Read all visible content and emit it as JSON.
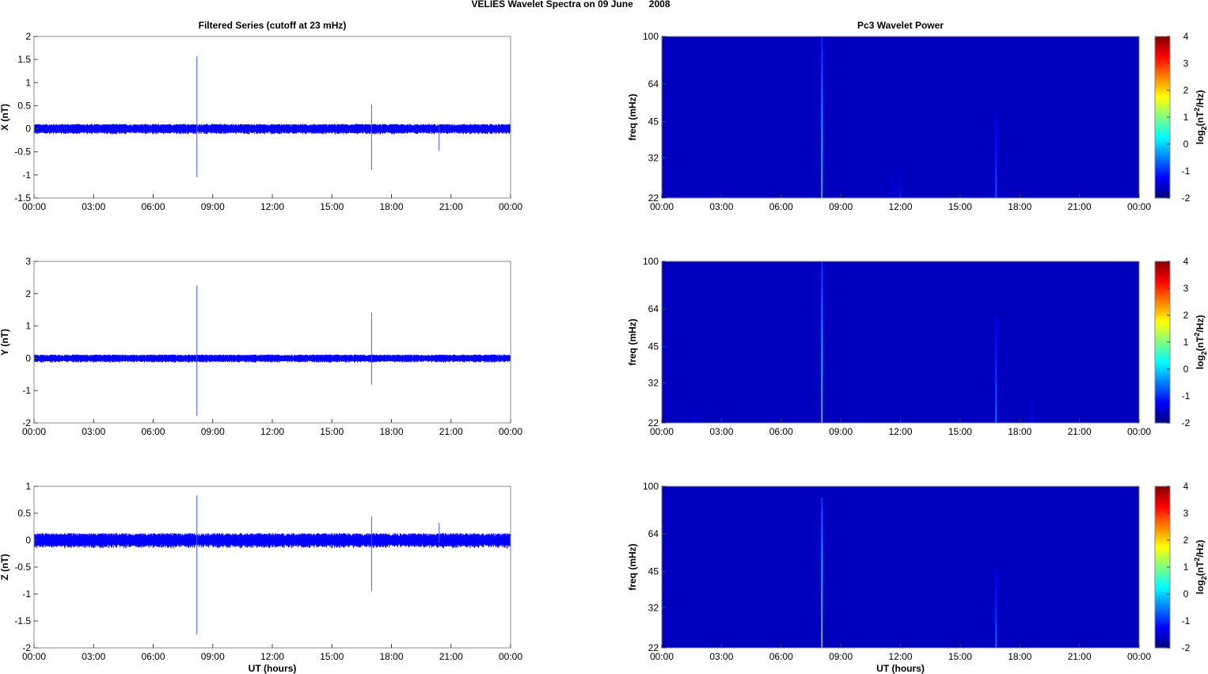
{
  "figure": {
    "suptitle": "VELIES Wavelet Spectra on 09 June      2008"
  },
  "chart_data": [
    {
      "type": "line",
      "panel": "X",
      "title": "Filtered Series (cutoff at 23 mHz)",
      "xlabel": "",
      "ylabel": "X (nT)",
      "xlim": [
        0,
        24
      ],
      "ylim": [
        -1.5,
        2
      ],
      "xticks": [
        "00:00",
        "03:00",
        "06:00",
        "09:00",
        "12:00",
        "15:00",
        "18:00",
        "21:00",
        "00:00"
      ],
      "yticks": [
        -1.5,
        -1,
        -0.5,
        0,
        0.5,
        1,
        1.5,
        2
      ],
      "ytick_labels": [
        "-1.5",
        "-1",
        "-0.5",
        "0",
        "0.5",
        "1",
        "1.5",
        "2"
      ],
      "series": [
        {
          "color": "#0000ff",
          "noise_amplitude": 0.08,
          "spikes": [
            {
              "t": 8.2,
              "ymin": -1.05,
              "ymax": 1.57
            },
            {
              "t": 17.0,
              "ymin": -0.9,
              "ymax": 0.53
            },
            {
              "t": 20.4,
              "ymin": -0.48,
              "ymax": 0.05
            }
          ]
        }
      ],
      "grid": false
    },
    {
      "type": "heatmap",
      "panel": "X",
      "title": "Pc3 Wavelet Power",
      "xlabel": "",
      "ylabel": "freq (mHz)",
      "xlim": [
        0,
        24
      ],
      "ylim": [
        22,
        100
      ],
      "yscale": "log",
      "xticks": [
        "00:00",
        "03:00",
        "06:00",
        "09:00",
        "12:00",
        "15:00",
        "18:00",
        "21:00",
        "00:00"
      ],
      "yticks": [
        100,
        64,
        45,
        32,
        22
      ],
      "background_value": -2,
      "events": [
        {
          "t": 8.05,
          "fmax": 100,
          "peak": 1.0
        },
        {
          "t": 11.6,
          "fmax": 28,
          "peak": -1.3
        },
        {
          "t": 11.95,
          "fmax": 28,
          "peak": -1.4
        },
        {
          "t": 16.8,
          "fmax": 48,
          "peak": -0.5
        }
      ],
      "colorbar": {
        "label": "log2(nT2/Hz)",
        "label_base": "log",
        "label_sub": "2",
        "label_paren_open": "(nT",
        "label_sup": "2",
        "label_tail": "/Hz)",
        "ticks": [
          4,
          3,
          2,
          1,
          0,
          -1,
          -2
        ],
        "range": [
          -2,
          4
        ],
        "colormap": "jet"
      }
    },
    {
      "type": "line",
      "panel": "Y",
      "title": "",
      "xlabel": "",
      "ylabel": "Y (nT)",
      "xlim": [
        0,
        24
      ],
      "ylim": [
        -2,
        3
      ],
      "xticks": [
        "00:00",
        "03:00",
        "06:00",
        "09:00",
        "12:00",
        "15:00",
        "18:00",
        "21:00",
        "00:00"
      ],
      "yticks": [
        -2,
        -1,
        0,
        1,
        2,
        3
      ],
      "ytick_labels": [
        "-2",
        "-1",
        "0",
        "1",
        "2",
        "3"
      ],
      "series": [
        {
          "color": "#0000ff",
          "noise_amplitude": 0.09,
          "spikes": [
            {
              "t": 8.2,
              "ymin": -1.78,
              "ymax": 2.25
            },
            {
              "t": 17.0,
              "ymin": -0.82,
              "ymax": 1.42
            }
          ]
        }
      ],
      "grid": false
    },
    {
      "type": "heatmap",
      "panel": "Y",
      "title": "",
      "xlabel": "",
      "ylabel": "freq (mHz)",
      "xlim": [
        0,
        24
      ],
      "ylim": [
        22,
        100
      ],
      "yscale": "log",
      "xticks": [
        "00:00",
        "03:00",
        "06:00",
        "09:00",
        "12:00",
        "15:00",
        "18:00",
        "21:00",
        "00:00"
      ],
      "yticks": [
        100,
        64,
        45,
        32,
        22
      ],
      "background_value": -2,
      "events": [
        {
          "t": 1.7,
          "fmax": 25,
          "peak": -1.5
        },
        {
          "t": 8.05,
          "fmax": 100,
          "peak": 1.2
        },
        {
          "t": 16.8,
          "fmax": 60,
          "peak": -0.3
        },
        {
          "t": 18.6,
          "fmax": 28,
          "peak": -1.2
        }
      ],
      "colorbar": {
        "label": "log2(nT2/Hz)",
        "label_base": "log",
        "label_sub": "2",
        "label_paren_open": "(nT",
        "label_sup": "2",
        "label_tail": "/Hz)",
        "ticks": [
          4,
          3,
          2,
          1,
          0,
          -1,
          -2
        ],
        "range": [
          -2,
          4
        ],
        "colormap": "jet"
      }
    },
    {
      "type": "line",
      "panel": "Z",
      "title": "",
      "xlabel": "UT (hours)",
      "ylabel": "Z (nT)",
      "xlim": [
        0,
        24
      ],
      "ylim": [
        -2,
        1
      ],
      "xticks": [
        "00:00",
        "03:00",
        "06:00",
        "09:00",
        "12:00",
        "15:00",
        "18:00",
        "21:00",
        "00:00"
      ],
      "yticks": [
        -2,
        -1.5,
        -1,
        -0.5,
        0,
        0.5,
        1
      ],
      "ytick_labels": [
        "-2",
        "-1.5",
        "-1",
        "-0.5",
        "0",
        "0.5",
        "1"
      ],
      "series": [
        {
          "color": "#0000ff",
          "noise_amplitude": 0.1,
          "spikes": [
            {
              "t": 8.2,
              "ymin": -1.75,
              "ymax": 0.83
            },
            {
              "t": 17.0,
              "ymin": -0.95,
              "ymax": 0.44
            },
            {
              "t": 20.4,
              "ymin": -0.05,
              "ymax": 0.32
            }
          ]
        }
      ],
      "grid": false
    },
    {
      "type": "heatmap",
      "panel": "Z",
      "title": "",
      "xlabel": "UT (hours)",
      "ylabel": "freq (mHz)",
      "xlim": [
        0,
        24
      ],
      "ylim": [
        22,
        100
      ],
      "yscale": "log",
      "xticks": [
        "00:00",
        "03:00",
        "06:00",
        "09:00",
        "12:00",
        "15:00",
        "18:00",
        "21:00",
        "00:00"
      ],
      "yticks": [
        100,
        64,
        45,
        32,
        22
      ],
      "background_value": -2,
      "events": [
        {
          "t": 8.05,
          "fmax": 90,
          "peak": 1.5
        },
        {
          "t": 16.8,
          "fmax": 46,
          "peak": -0.4
        }
      ],
      "colorbar": {
        "label": "log2(nT2/Hz)",
        "label_base": "log",
        "label_sub": "2",
        "label_paren_open": "(nT",
        "label_sup": "2",
        "label_tail": "/Hz)",
        "ticks": [
          4,
          3,
          2,
          1,
          0,
          -1,
          -2
        ],
        "range": [
          -2,
          4
        ],
        "colormap": "jet"
      }
    }
  ]
}
